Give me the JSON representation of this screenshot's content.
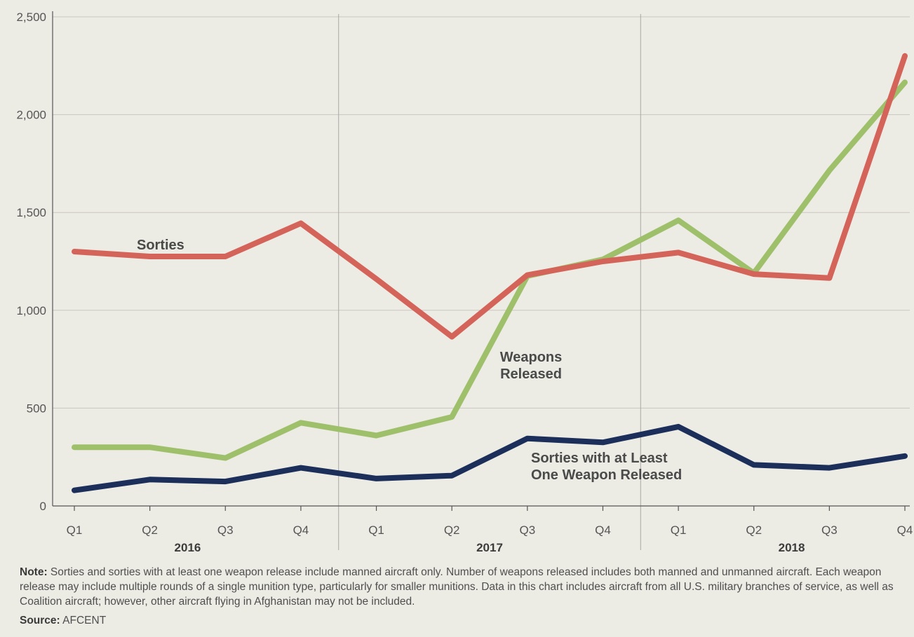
{
  "chart_data": {
    "type": "line",
    "title": "",
    "xlabel": "",
    "ylabel": "",
    "categories": [
      "Q1",
      "Q2",
      "Q3",
      "Q4",
      "Q1",
      "Q2",
      "Q3",
      "Q4",
      "Q1",
      "Q2",
      "Q3",
      "Q4"
    ],
    "year_groups": [
      {
        "label": "2016",
        "start": 0,
        "end": 3
      },
      {
        "label": "2017",
        "start": 4,
        "end": 7
      },
      {
        "label": "2018",
        "start": 8,
        "end": 11
      }
    ],
    "ylim": [
      0,
      2500
    ],
    "yticks": [
      0,
      500,
      1000,
      1500,
      2000,
      2500
    ],
    "ytick_labels": [
      "0",
      "500",
      "1,000",
      "1,500",
      "2,000",
      "2,500"
    ],
    "grid": true,
    "series": [
      {
        "name": "Sorties",
        "color": "#d4645a",
        "values": [
          1300,
          1275,
          1275,
          1445,
          1160,
          865,
          1180,
          1250,
          1295,
          1185,
          1165,
          2300
        ]
      },
      {
        "name": "Weapons Released",
        "color": "#9fc06b",
        "values": [
          300,
          300,
          245,
          425,
          360,
          455,
          1175,
          1260,
          1460,
          1190,
          1715,
          2165
        ]
      },
      {
        "name": "Sorties with at Least One Weapon Released",
        "color": "#1b2f5a",
        "values": [
          80,
          135,
          125,
          195,
          140,
          155,
          345,
          325,
          405,
          210,
          195,
          255
        ]
      }
    ],
    "series_labels": [
      {
        "lines": [
          "Sorties"
        ]
      },
      {
        "lines": [
          "Weapons",
          "Released"
        ]
      },
      {
        "lines": [
          "Sorties with at Least",
          "One Weapon Released"
        ]
      }
    ]
  },
  "note": {
    "label": "Note:",
    "text": "Sorties and sorties with at least one weapon release include manned aircraft only. Number of weapons released includes both manned and unmanned aircraft. Each weapon release may include multiple rounds of a single munition type, particularly for smaller munitions. Data in this chart includes aircraft from all U.S. military branches of service, as well as Coalition aircraft; however, other aircraft flying in Afghanistan may not be included."
  },
  "source": {
    "label": "Source:",
    "text": "AFCENT"
  }
}
